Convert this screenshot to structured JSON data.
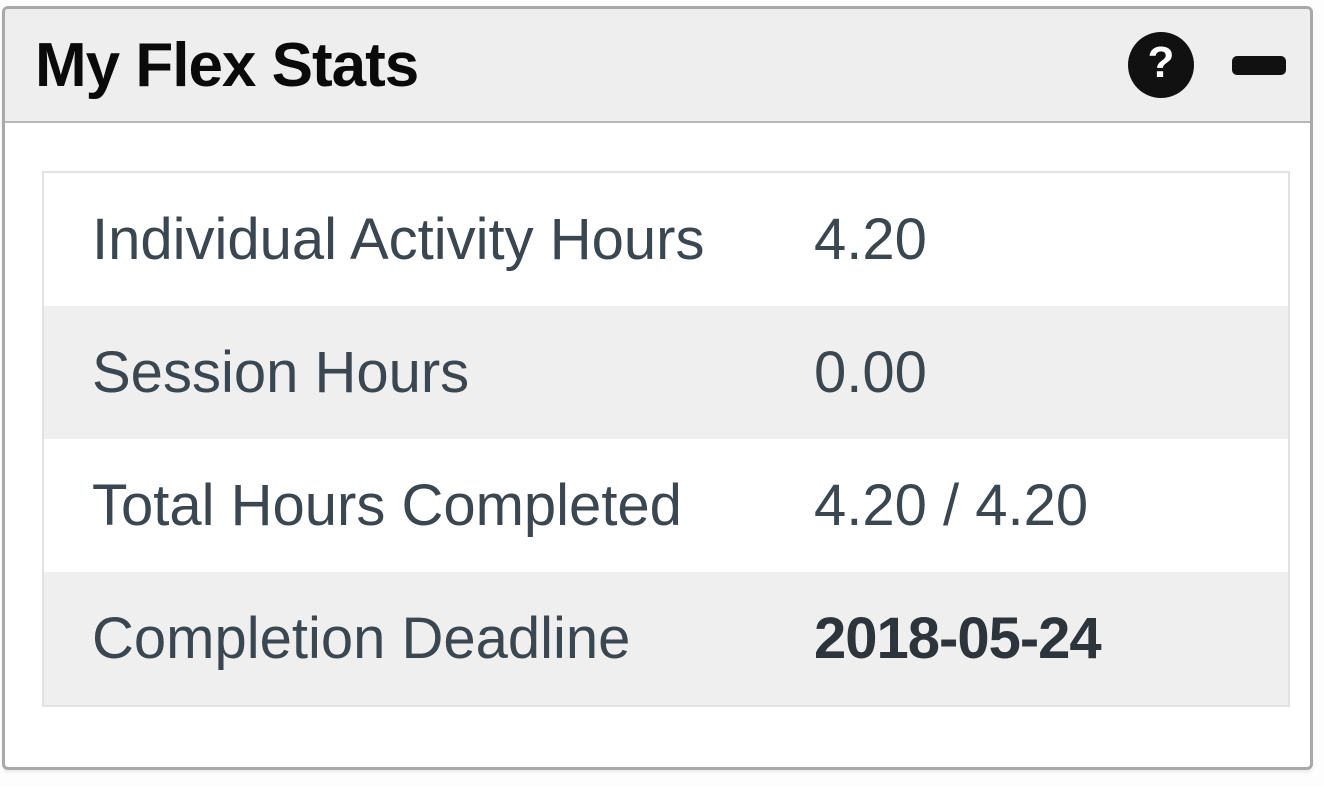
{
  "widget": {
    "title": "My Flex Stats",
    "header": {
      "help_glyph": "?"
    },
    "stats": [
      {
        "label": "Individual Activity Hours",
        "value": "4.20"
      },
      {
        "label": "Session Hours",
        "value": "0.00"
      },
      {
        "label": "Total Hours Completed",
        "value": "4.20 / 4.20"
      },
      {
        "label": "Completion Deadline",
        "value": "2018-05-24"
      }
    ],
    "colors": {
      "header_bg": "#eeeeee",
      "row_alt_bg": "#efefef",
      "panel_border": "#a9a9a9",
      "table_border": "#e2e2e2",
      "label_text": "#3a4650",
      "title_text": "#0a0a0a",
      "icon_bg": "#111111",
      "icon_glyph": "#ffffff"
    }
  }
}
